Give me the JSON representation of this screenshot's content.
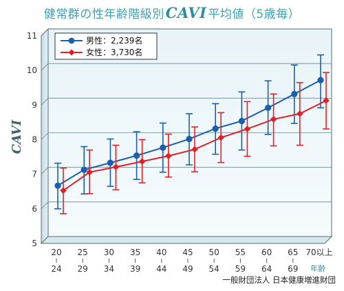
{
  "title": {
    "prefix": "健常群の性年齢階級別",
    "highlight": "CAVI",
    "suffix": "平均値（5歳毎）"
  },
  "credit": "一般財団法人 日本健康増進財団",
  "chart_data": {
    "type": "line",
    "title": "健常群の性年齢階級別CAVI平均値（5歳毎）",
    "xlabel": "年齢",
    "ylabel": "CAVI",
    "ylim": [
      5,
      11
    ],
    "yticks": [
      "5",
      "6",
      "7",
      "8",
      "9",
      "10",
      "11"
    ],
    "grid": "horizontal",
    "legend_position": "top-left",
    "categories": [
      {
        "top": "20",
        "bottom": "24"
      },
      {
        "top": "25",
        "bottom": "29"
      },
      {
        "top": "30",
        "bottom": "34"
      },
      {
        "top": "35",
        "bottom": "39"
      },
      {
        "top": "40",
        "bottom": "44"
      },
      {
        "top": "45",
        "bottom": "49"
      },
      {
        "top": "50",
        "bottom": "54"
      },
      {
        "top": "55",
        "bottom": "59"
      },
      {
        "top": "60",
        "bottom": "64"
      },
      {
        "top": "65",
        "bottom": "69"
      },
      {
        "top": "70以上",
        "bottom": ""
      }
    ],
    "series": [
      {
        "name": "男性：2,239名",
        "color": "#1a5fac",
        "marker": "circle",
        "values": [
          6.47,
          6.93,
          7.13,
          7.34,
          7.57,
          7.82,
          8.12,
          8.34,
          8.72,
          9.12,
          9.52
        ],
        "error_low": [
          5.8,
          6.23,
          6.45,
          6.65,
          6.86,
          7.07,
          7.38,
          7.5,
          7.95,
          8.27,
          8.72
        ],
        "error_high": [
          7.12,
          7.6,
          7.82,
          8.03,
          8.28,
          8.55,
          8.84,
          9.18,
          9.5,
          9.96,
          10.25
        ]
      },
      {
        "name": "女性：3,730名",
        "color": "#e32028",
        "marker": "diamond",
        "values": [
          6.33,
          6.86,
          7.01,
          7.17,
          7.33,
          7.52,
          7.86,
          8.11,
          8.39,
          8.55,
          8.93
        ],
        "error_low": [
          5.66,
          6.24,
          6.35,
          6.55,
          6.72,
          6.87,
          7.14,
          7.32,
          7.62,
          7.64,
          8.11
        ],
        "error_high": [
          6.98,
          7.5,
          7.64,
          7.8,
          7.96,
          8.17,
          8.58,
          8.9,
          9.12,
          9.45,
          9.74
        ]
      }
    ]
  }
}
